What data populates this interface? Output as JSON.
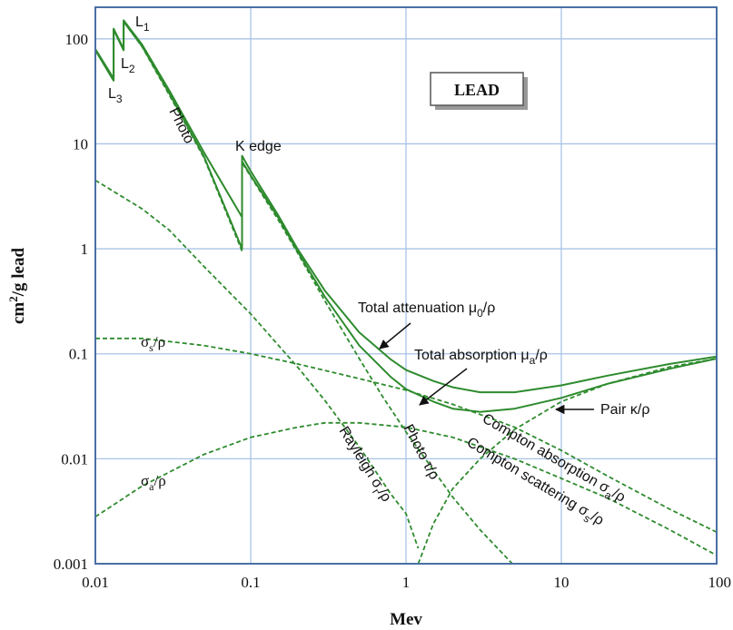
{
  "chart_data": {
    "type": "line",
    "title": "LEAD",
    "xlabel": "Mev",
    "ylabel": "cm²/g lead",
    "xscale": "log",
    "yscale": "log",
    "xlim": [
      0.01,
      100
    ],
    "ylim": [
      0.001,
      200
    ],
    "grid": true,
    "x_ticks": [
      "0.01",
      "0.1",
      "1",
      "10",
      "100"
    ],
    "y_ticks": [
      "0.001",
      "0.01",
      "0.1",
      "1",
      "10",
      "100"
    ],
    "colors": {
      "curve": "#2e8b2e",
      "grid": "#a9c3e6",
      "frame": "#4a6fa5"
    },
    "series": [
      {
        "name": "Total attenuation μ0/ρ",
        "style": "solid",
        "points": [
          [
            0.01,
            80
          ],
          [
            0.0131,
            42
          ],
          [
            0.0131,
            125
          ],
          [
            0.0152,
            80
          ],
          [
            0.0152,
            150
          ],
          [
            0.02,
            88
          ],
          [
            0.03,
            32
          ],
          [
            0.05,
            8.3
          ],
          [
            0.088,
            2.0
          ],
          [
            0.088,
            7.7
          ],
          [
            0.1,
            5.5
          ],
          [
            0.15,
            2.1
          ],
          [
            0.2,
            1.0
          ],
          [
            0.3,
            0.4
          ],
          [
            0.5,
            0.16
          ],
          [
            0.8,
            0.088
          ],
          [
            1.0,
            0.07
          ],
          [
            1.5,
            0.055
          ],
          [
            2.0,
            0.048
          ],
          [
            3.0,
            0.043
          ],
          [
            5.0,
            0.043
          ],
          [
            10,
            0.05
          ],
          [
            20,
            0.062
          ],
          [
            50,
            0.08
          ],
          [
            100,
            0.094
          ]
        ]
      },
      {
        "name": "Total absorption μa/ρ",
        "style": "solid",
        "points": [
          [
            0.01,
            78
          ],
          [
            0.0131,
            40
          ],
          [
            0.0131,
            122
          ],
          [
            0.0152,
            78
          ],
          [
            0.0152,
            146
          ],
          [
            0.02,
            85
          ],
          [
            0.03,
            30
          ],
          [
            0.05,
            7.6
          ],
          [
            0.088,
            1.0
          ],
          [
            0.088,
            6.8
          ],
          [
            0.1,
            5.0
          ],
          [
            0.15,
            2.0
          ],
          [
            0.2,
            0.95
          ],
          [
            0.3,
            0.35
          ],
          [
            0.5,
            0.12
          ],
          [
            0.8,
            0.06
          ],
          [
            1.0,
            0.046
          ],
          [
            1.5,
            0.035
          ],
          [
            2.0,
            0.03
          ],
          [
            3.0,
            0.028
          ],
          [
            5.0,
            0.03
          ],
          [
            10,
            0.038
          ],
          [
            20,
            0.052
          ],
          [
            50,
            0.072
          ],
          [
            100,
            0.09
          ]
        ]
      },
      {
        "name": "Photo τ/ρ",
        "style": "dashed",
        "points": [
          [
            0.01,
            78
          ],
          [
            0.0131,
            40
          ],
          [
            0.0131,
            122
          ],
          [
            0.0152,
            78
          ],
          [
            0.0152,
            146
          ],
          [
            0.02,
            84
          ],
          [
            0.03,
            29
          ],
          [
            0.05,
            7.4
          ],
          [
            0.088,
            0.95
          ],
          [
            0.088,
            6.6
          ],
          [
            0.1,
            4.9
          ],
          [
            0.15,
            1.9
          ],
          [
            0.2,
            0.92
          ],
          [
            0.3,
            0.32
          ],
          [
            0.5,
            0.09
          ],
          [
            0.7,
            0.04
          ],
          [
            1.0,
            0.018
          ],
          [
            1.5,
            0.0078
          ],
          [
            2.0,
            0.0043
          ],
          [
            3.0,
            0.0021
          ],
          [
            5.0,
            0.00095
          ]
        ]
      },
      {
        "name": "Rayleigh σr/ρ",
        "style": "dashed",
        "points": [
          [
            0.01,
            4.5
          ],
          [
            0.02,
            2.4
          ],
          [
            0.03,
            1.5
          ],
          [
            0.05,
            0.68
          ],
          [
            0.1,
            0.24
          ],
          [
            0.2,
            0.075
          ],
          [
            0.3,
            0.036
          ],
          [
            0.5,
            0.013
          ],
          [
            0.8,
            0.0046
          ],
          [
            1.0,
            0.003
          ],
          [
            1.2,
            0.0014
          ]
        ]
      },
      {
        "name": "σs/ρ",
        "style": "dashed",
        "points": [
          [
            0.01,
            0.14
          ],
          [
            0.02,
            0.14
          ],
          [
            0.05,
            0.12
          ],
          [
            0.1,
            0.1
          ],
          [
            0.2,
            0.08
          ],
          [
            0.5,
            0.058
          ],
          [
            1.0,
            0.045
          ],
          [
            2.0,
            0.033
          ],
          [
            5.0,
            0.02
          ],
          [
            10,
            0.012
          ],
          [
            20,
            0.0068
          ],
          [
            50,
            0.0033
          ],
          [
            100,
            0.002
          ]
        ]
      },
      {
        "name": "σa/ρ",
        "style": "dashed",
        "points": [
          [
            0.01,
            0.0028
          ],
          [
            0.02,
            0.0055
          ],
          [
            0.05,
            0.011
          ],
          [
            0.1,
            0.016
          ],
          [
            0.2,
            0.02
          ],
          [
            0.3,
            0.022
          ],
          [
            0.5,
            0.022
          ],
          [
            1.0,
            0.02
          ],
          [
            2.0,
            0.016
          ],
          [
            5.0,
            0.01
          ],
          [
            10,
            0.0065
          ],
          [
            20,
            0.0042
          ],
          [
            50,
            0.0021
          ],
          [
            100,
            0.0012
          ]
        ]
      },
      {
        "name": "Pair κ/ρ",
        "style": "dashed",
        "points": [
          [
            1.2,
            0.001
          ],
          [
            1.5,
            0.0024
          ],
          [
            2.0,
            0.0052
          ],
          [
            3.0,
            0.01
          ],
          [
            5.0,
            0.019
          ],
          [
            10,
            0.035
          ],
          [
            20,
            0.052
          ],
          [
            50,
            0.075
          ],
          [
            100,
            0.09
          ]
        ]
      }
    ]
  },
  "labels": {
    "legend_box": "LEAD",
    "l1_main": "L",
    "l1_sub": "1",
    "l2_main": "L",
    "l2_sub": "2",
    "l3_main": "L",
    "l3_sub": "3",
    "photo": "Photo",
    "k_edge": "K edge",
    "total_att_main": "Total attenuation μ",
    "total_att_sub": "0",
    "total_att_tail": "/ρ",
    "total_abs_main": "Total absorption μ",
    "total_abs_sub": "a",
    "total_abs_tail": "/ρ",
    "sigma_s_main": "σ",
    "sigma_s_sub": "s",
    "sigma_s_tail": "/ρ",
    "sigma_a_main": "σ",
    "sigma_a_sub": "a",
    "sigma_a_tail": "/ρ",
    "pair": "Pair κ/ρ",
    "rayleigh_main": "Rayleigh σ",
    "rayleigh_sub": "r",
    "rayleigh_tail": "/ρ",
    "photo_tau": "Photo τ/ρ",
    "compton_abs_main": "Compton absorption σ",
    "compton_abs_sub": "a",
    "compton_abs_tail": "/ρ",
    "compton_sca_main": "Compton scattering σ",
    "compton_sca_sub": "s",
    "compton_sca_tail": "/ρ",
    "ylabel_main": "cm",
    "ylabel_sup": "2",
    "ylabel_tail": "/g lead"
  }
}
